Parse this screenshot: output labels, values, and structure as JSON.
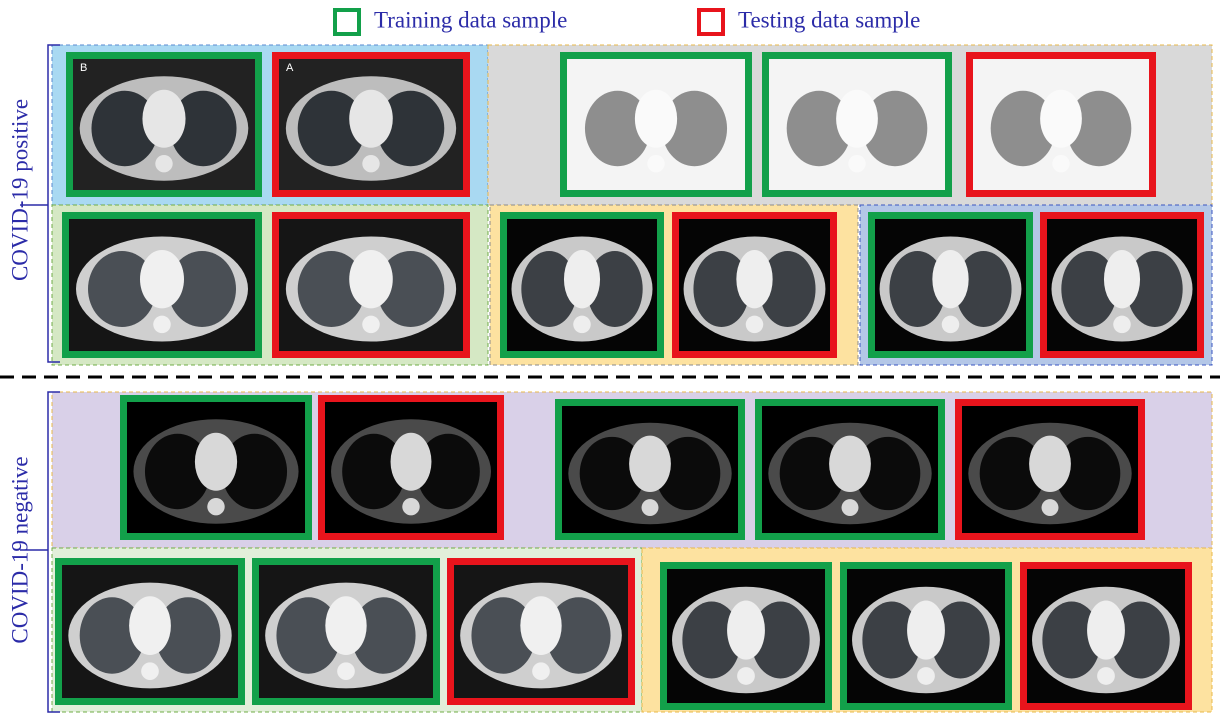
{
  "legend": {
    "training": "Training data sample",
    "testing": "Testing data sample"
  },
  "groups": {
    "positive": "COVID-19 positive",
    "negative": "COVID-19 negative"
  },
  "image_labels": [
    "B",
    "A"
  ]
}
